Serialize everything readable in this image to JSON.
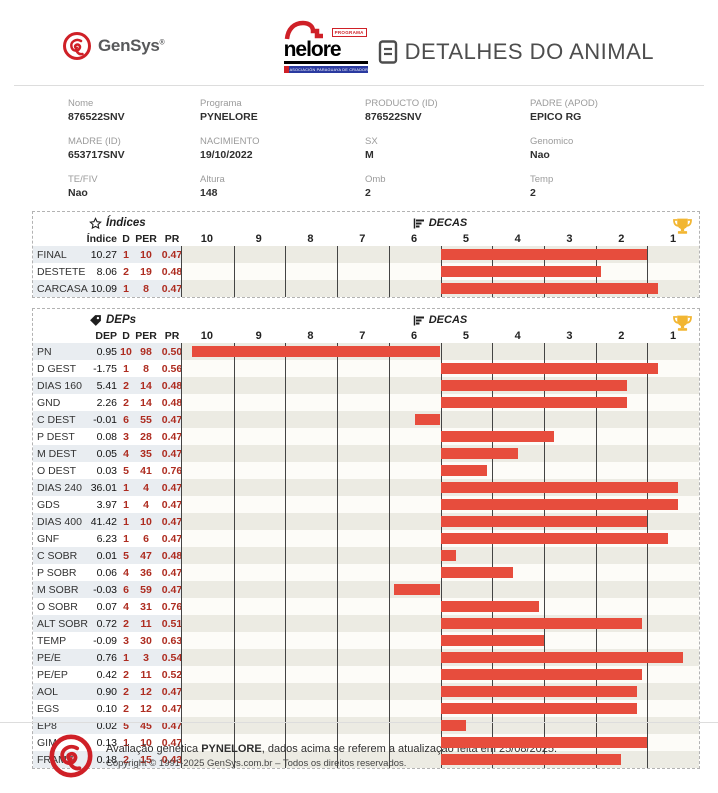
{
  "header": {
    "gensys_text": "GenSys",
    "registered": "®",
    "nelore_programa": "PROGRAMA",
    "nelore_name": "nelore",
    "nelore_subtitle": "ASOCIACIÓN PARAGUAYA DE CRIADORES",
    "page_title": "DETALHES DO ANIMAL"
  },
  "info_fields": [
    {
      "label": "Nome",
      "value": "876522SNV"
    },
    {
      "label": "Programa",
      "value": "PYNELORE"
    },
    {
      "label": "PRODUCTO (ID)",
      "value": "876522SNV"
    },
    {
      "label": "PADRE (APOD)",
      "value": "EPICO RG"
    },
    {
      "label": "MADRE (ID)",
      "value": "653717SNV"
    },
    {
      "label": "NACIMIENTO",
      "value": "19/10/2022"
    },
    {
      "label": "SX",
      "value": "M"
    },
    {
      "label": "Genomico",
      "value": "Nao"
    },
    {
      "label": "TE/FIV",
      "value": "Nao"
    },
    {
      "label": "Altura",
      "value": "148"
    },
    {
      "label": "Omb",
      "value": "2"
    },
    {
      "label": "Temp",
      "value": "2"
    }
  ],
  "chart_data": [
    {
      "type": "bar",
      "title": "Índices",
      "decas_label": "DECAS",
      "columns": [
        "Índice",
        "D",
        "PER",
        "PR"
      ],
      "scale": [
        "10",
        "9",
        "8",
        "7",
        "6",
        "5",
        "4",
        "3",
        "2",
        "1"
      ],
      "note": "bars pivot at decile 5/6 midline; length = |50 - PER| percent of scale",
      "rows": [
        {
          "label": "FINAL",
          "value": "10.27",
          "d": "1",
          "per": "10",
          "pr": "0.47"
        },
        {
          "label": "DESTETE",
          "value": "8.06",
          "d": "2",
          "per": "19",
          "pr": "0.48"
        },
        {
          "label": "CARCASA",
          "value": "10.09",
          "d": "1",
          "per": "8",
          "pr": "0.47"
        }
      ]
    },
    {
      "type": "bar",
      "title": "DEPs",
      "decas_label": "DECAS",
      "columns": [
        "DEP",
        "D",
        "PER",
        "PR"
      ],
      "scale": [
        "10",
        "9",
        "8",
        "7",
        "6",
        "5",
        "4",
        "3",
        "2",
        "1"
      ],
      "note": "bars pivot at decile 5/6 midline; length = |50 - PER| percent of scale",
      "rows": [
        {
          "label": "PN",
          "value": "0.95",
          "d": "10",
          "per": "98",
          "pr": "0.50"
        },
        {
          "label": "D GEST",
          "value": "-1.75",
          "d": "1",
          "per": "8",
          "pr": "0.56"
        },
        {
          "label": "DIAS 160",
          "value": "5.41",
          "d": "2",
          "per": "14",
          "pr": "0.48"
        },
        {
          "label": "GND",
          "value": "2.26",
          "d": "2",
          "per": "14",
          "pr": "0.48"
        },
        {
          "label": "C DEST",
          "value": "-0.01",
          "d": "6",
          "per": "55",
          "pr": "0.47"
        },
        {
          "label": "P DEST",
          "value": "0.08",
          "d": "3",
          "per": "28",
          "pr": "0.47"
        },
        {
          "label": "M DEST",
          "value": "0.05",
          "d": "4",
          "per": "35",
          "pr": "0.47"
        },
        {
          "label": "O DEST",
          "value": "0.03",
          "d": "5",
          "per": "41",
          "pr": "0.76"
        },
        {
          "label": "DIAS 240",
          "value": "36.01",
          "d": "1",
          "per": "4",
          "pr": "0.47"
        },
        {
          "label": "GDS",
          "value": "3.97",
          "d": "1",
          "per": "4",
          "pr": "0.47"
        },
        {
          "label": "DIAS 400",
          "value": "41.42",
          "d": "1",
          "per": "10",
          "pr": "0.47"
        },
        {
          "label": "GNF",
          "value": "6.23",
          "d": "1",
          "per": "6",
          "pr": "0.47"
        },
        {
          "label": "C SOBR",
          "value": "0.01",
          "d": "5",
          "per": "47",
          "pr": "0.48"
        },
        {
          "label": "P SOBR",
          "value": "0.06",
          "d": "4",
          "per": "36",
          "pr": "0.47"
        },
        {
          "label": "M SOBR",
          "value": "-0.03",
          "d": "6",
          "per": "59",
          "pr": "0.47"
        },
        {
          "label": "O SOBR",
          "value": "0.07",
          "d": "4",
          "per": "31",
          "pr": "0.76"
        },
        {
          "label": "ALT SOBR",
          "value": "0.72",
          "d": "2",
          "per": "11",
          "pr": "0.51"
        },
        {
          "label": "TEMP",
          "value": "-0.09",
          "d": "3",
          "per": "30",
          "pr": "0.63"
        },
        {
          "label": "PE/E",
          "value": "0.76",
          "d": "1",
          "per": "3",
          "pr": "0.54"
        },
        {
          "label": "PE/EP",
          "value": "0.42",
          "d": "2",
          "per": "11",
          "pr": "0.52"
        },
        {
          "label": "AOL",
          "value": "0.90",
          "d": "2",
          "per": "12",
          "pr": "0.47"
        },
        {
          "label": "EGS",
          "value": "0.10",
          "d": "2",
          "per": "12",
          "pr": "0.47"
        },
        {
          "label": "EP8",
          "value": "0.02",
          "d": "5",
          "per": "45",
          "pr": "0.47"
        },
        {
          "label": "GIM",
          "value": "0.13",
          "d": "1",
          "per": "10",
          "pr": "0.47"
        },
        {
          "label": "FRAME",
          "value": "0.18",
          "d": "2",
          "per": "15",
          "pr": "0.43"
        }
      ]
    }
  ],
  "footer": {
    "line1_prefix": "Avaliação genética ",
    "line1_bold": "PYNELORE",
    "line1_suffix": ", dados acima se referem a atualização feita em 25/08/2025.",
    "line2": "Copyright © 1991-2025 GenSys.com.br – Todos os direitos reservados."
  },
  "colors": {
    "bar_red": "#e74d3d",
    "accent_red_text": "#ae2c20",
    "logo_red": "#cf2027",
    "logo_blue": "#2a3aa0",
    "trophy_gold": "#f2b632"
  }
}
